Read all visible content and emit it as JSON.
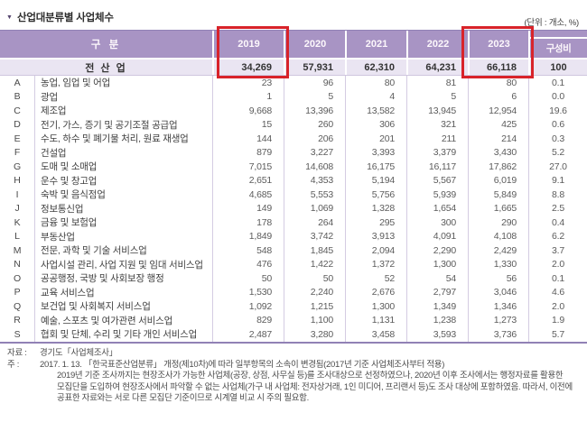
{
  "title": "산업대분류별 사업체수",
  "title_marker": "▼",
  "unit": "(단위 : 개소, %)",
  "colors": {
    "header_purple": "#a894c4",
    "total_row_bg": "#eae5f2",
    "highlight_red": "#d8232a"
  },
  "highlight": {
    "columns": [
      "2019",
      "2023"
    ]
  },
  "table": {
    "col_group_label": "구 분",
    "years": [
      "2019",
      "2020",
      "2021",
      "2022",
      "2023"
    ],
    "ratio_label": "구성비",
    "total": {
      "label": "전 산 업",
      "values": [
        "34,269",
        "57,931",
        "62,310",
        "64,231",
        "66,118",
        "100"
      ]
    },
    "rows": [
      {
        "code": "A",
        "name": "농업, 임업 및 어업",
        "values": [
          "23",
          "96",
          "80",
          "81",
          "80",
          "0.1"
        ]
      },
      {
        "code": "B",
        "name": "광업",
        "values": [
          "1",
          "5",
          "4",
          "5",
          "6",
          "0.0"
        ]
      },
      {
        "code": "C",
        "name": "제조업",
        "values": [
          "9,668",
          "13,396",
          "13,582",
          "13,945",
          "12,954",
          "19.6"
        ]
      },
      {
        "code": "D",
        "name": "전기, 가스, 증기 및 공기조절 공급업",
        "values": [
          "15",
          "260",
          "306",
          "321",
          "425",
          "0.6"
        ]
      },
      {
        "code": "E",
        "name": "수도, 하수 및 폐기물 처리, 원료 재생업",
        "values": [
          "144",
          "206",
          "201",
          "211",
          "214",
          "0.3"
        ]
      },
      {
        "code": "F",
        "name": "건설업",
        "values": [
          "879",
          "3,227",
          "3,393",
          "3,379",
          "3,430",
          "5.2"
        ]
      },
      {
        "code": "G",
        "name": "도매 및 소매업",
        "values": [
          "7,015",
          "14,608",
          "16,175",
          "16,117",
          "17,862",
          "27.0"
        ]
      },
      {
        "code": "H",
        "name": "운수 및 창고업",
        "values": [
          "2,651",
          "4,353",
          "5,194",
          "5,567",
          "6,019",
          "9.1"
        ]
      },
      {
        "code": "I",
        "name": "숙박 및 음식점업",
        "values": [
          "4,685",
          "5,553",
          "5,756",
          "5,939",
          "5,849",
          "8.8"
        ]
      },
      {
        "code": "J",
        "name": "정보통신업",
        "values": [
          "149",
          "1,069",
          "1,328",
          "1,654",
          "1,665",
          "2.5"
        ]
      },
      {
        "code": "K",
        "name": "금융 및 보험업",
        "values": [
          "178",
          "264",
          "295",
          "300",
          "290",
          "0.4"
        ]
      },
      {
        "code": "L",
        "name": "부동산업",
        "values": [
          "1,849",
          "3,742",
          "3,913",
          "4,091",
          "4,108",
          "6.2"
        ]
      },
      {
        "code": "M",
        "name": "전문, 과학 및 기술 서비스업",
        "values": [
          "548",
          "1,845",
          "2,094",
          "2,290",
          "2,429",
          "3.7"
        ]
      },
      {
        "code": "N",
        "name": "사업시설 관리, 사업 지원 및 임대 서비스업",
        "values": [
          "476",
          "1,422",
          "1,372",
          "1,300",
          "1,330",
          "2.0"
        ]
      },
      {
        "code": "O",
        "name": "공공행정, 국방 및 사회보장 행정",
        "values": [
          "50",
          "50",
          "52",
          "54",
          "56",
          "0.1"
        ]
      },
      {
        "code": "P",
        "name": "교육 서비스업",
        "values": [
          "1,530",
          "2,240",
          "2,676",
          "2,797",
          "3,046",
          "4.6"
        ]
      },
      {
        "code": "Q",
        "name": "보건업 및 사회복지 서비스업",
        "values": [
          "1,092",
          "1,215",
          "1,300",
          "1,349",
          "1,346",
          "2.0"
        ]
      },
      {
        "code": "R",
        "name": "예술, 스포츠 및 여가관련 서비스업",
        "values": [
          "829",
          "1,100",
          "1,131",
          "1,238",
          "1,273",
          "1.9"
        ]
      },
      {
        "code": "S",
        "name": "협회 및 단체, 수리 및 기타 개인 서비스업",
        "values": [
          "2,487",
          "3,280",
          "3,458",
          "3,593",
          "3,736",
          "5.7"
        ]
      }
    ]
  },
  "footnotes": {
    "source_label": "자료 :",
    "source_text": "경기도「사업체조사」",
    "note_label": "주   :",
    "note_first_line": "2017. 1. 13. 「한국표준산업분류」 개정(제10차)에 따라 일부항목의 소속이 변경됨(2017년 기준 사업체조사부터 적용)",
    "note_lines": [
      "2019년 기준 조사까지는 현장조사가 가능한 사업체(공장, 상점, 사무실 등)를 조사대상으로 선정하였으나, 2020년 이후 조사에서는 행정자료를 활용한",
      "모집단을 도입하여 현장조사에서 파악할 수 없는 사업체(가구 내 사업체: 전자상거래, 1인 미디어, 프리랜서 등)도 조사 대상에 포함하였음. 따라서, 이전에",
      "공표한 자료와는 서로 다른 모집단 기준이므로 시계열 비교 시 주의 필요함."
    ]
  }
}
